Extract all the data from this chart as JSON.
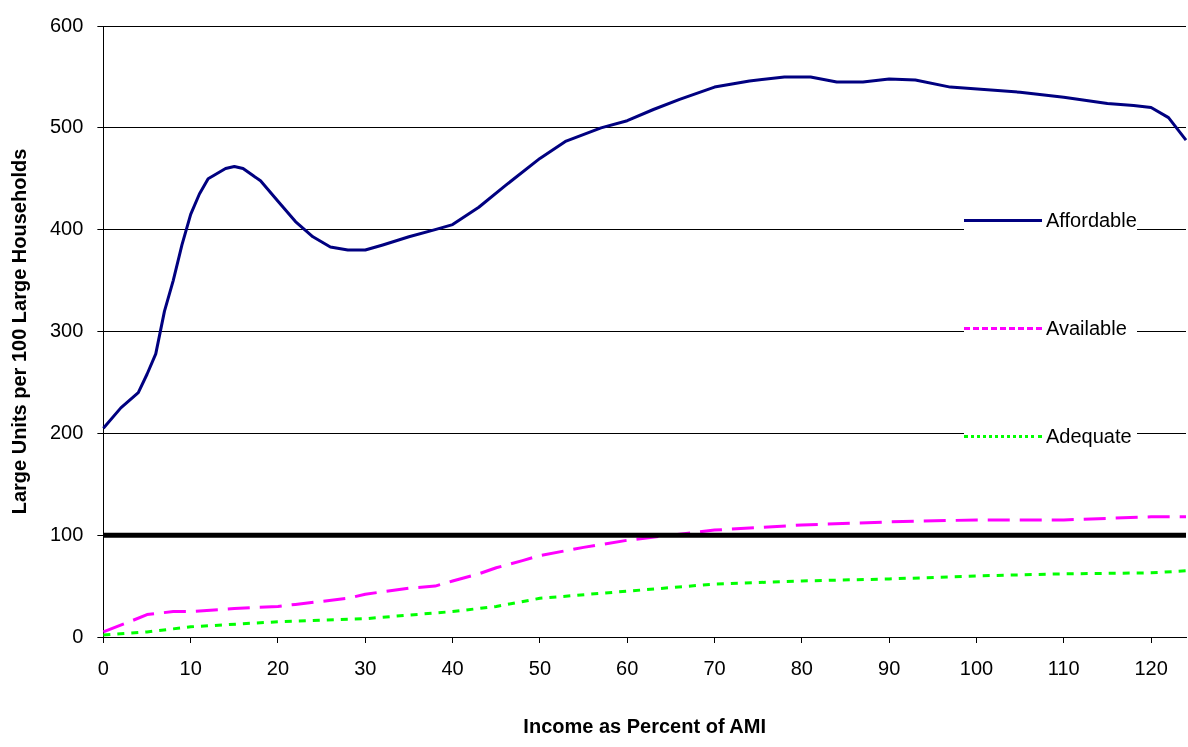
{
  "chart_data": {
    "type": "line",
    "xlabel": "Income as Percent of AMI",
    "ylabel": "Large Units per 100 Large Households",
    "xlim": [
      0,
      124
    ],
    "xticks": [
      0,
      10,
      20,
      30,
      40,
      50,
      60,
      70,
      80,
      90,
      100,
      110,
      120
    ],
    "ylim": [
      0,
      600
    ],
    "yticks": [
      0,
      100,
      200,
      300,
      400,
      500,
      600
    ],
    "grid": "y",
    "legend": "right",
    "marker": "none",
    "ref_lines": [
      {
        "axis": "y",
        "value": 100,
        "color": "#000000"
      }
    ],
    "series": [
      {
        "name": "Affordable",
        "color": "#000080",
        "line_style": "solid",
        "x": [
          0,
          2,
          4,
          5,
          6,
          7,
          8,
          9,
          10,
          11,
          12,
          14,
          15,
          16,
          18,
          20,
          22,
          24,
          26,
          28,
          30,
          32,
          35,
          38,
          40,
          43,
          46,
          50,
          53,
          57,
          60,
          63,
          66,
          70,
          74,
          78,
          81,
          84,
          87,
          90,
          93,
          97,
          105,
          110,
          115,
          118,
          120,
          122,
          124
        ],
        "values": [
          205,
          225,
          240,
          258,
          278,
          320,
          350,
          385,
          415,
          435,
          450,
          460,
          462,
          460,
          448,
          428,
          408,
          393,
          383,
          380,
          380,
          385,
          393,
          400,
          405,
          422,
          443,
          470,
          487,
          500,
          507,
          518,
          528,
          540,
          546,
          550,
          550,
          545,
          545,
          548,
          547,
          540,
          535,
          530,
          524,
          522,
          520,
          510,
          488
        ]
      },
      {
        "name": "Available",
        "color": "#ff00ff",
        "line_style": "dashed",
        "x": [
          0,
          3,
          5,
          8,
          10,
          15,
          20,
          22,
          25,
          28,
          30,
          35,
          38,
          40,
          43,
          45,
          48,
          50,
          55,
          60,
          65,
          70,
          80,
          90,
          100,
          110,
          120,
          124
        ],
        "values": [
          5,
          15,
          22,
          25,
          25,
          28,
          30,
          32,
          35,
          38,
          42,
          48,
          50,
          55,
          62,
          68,
          75,
          80,
          88,
          95,
          100,
          105,
          110,
          113,
          115,
          115,
          118,
          118
        ]
      },
      {
        "name": "Adequate",
        "color": "#00ff00",
        "line_style": "dotted",
        "x": [
          0,
          5,
          10,
          20,
          30,
          40,
          45,
          50,
          60,
          70,
          80,
          90,
          100,
          110,
          120,
          124
        ],
        "values": [
          2,
          5,
          10,
          15,
          18,
          25,
          30,
          38,
          45,
          52,
          55,
          57,
          60,
          62,
          63,
          65
        ]
      }
    ]
  }
}
